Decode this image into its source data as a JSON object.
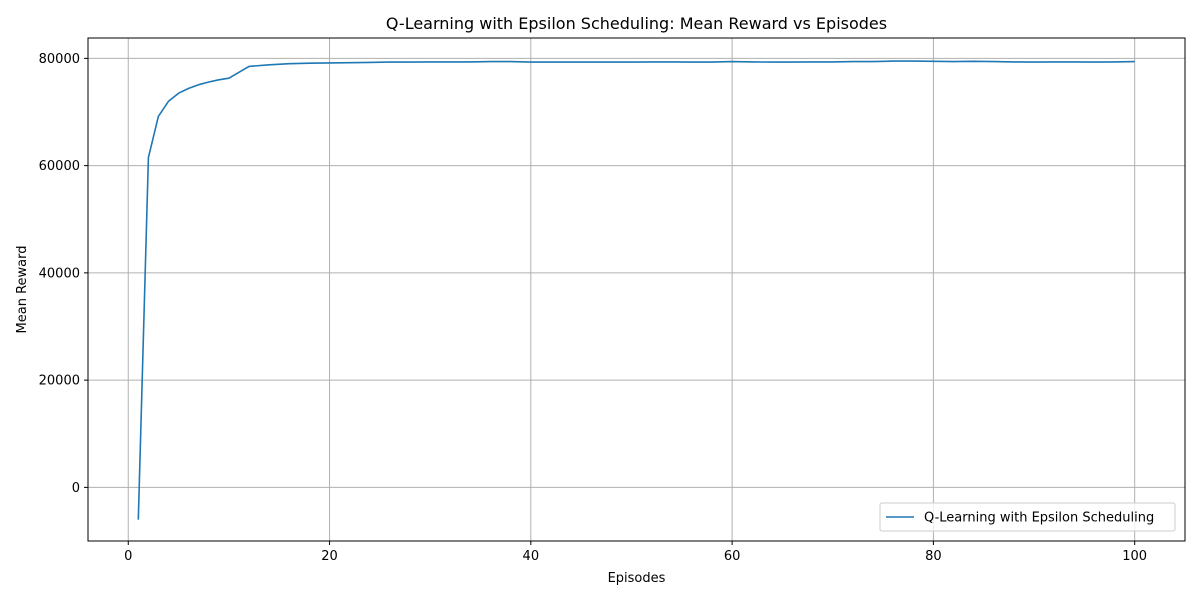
{
  "chart_data": {
    "type": "line",
    "title": "Q-Learning with Epsilon Scheduling: Mean Reward vs Episodes",
    "xlabel": "Episodes",
    "ylabel": "Mean Reward",
    "xlim": [
      -4,
      105
    ],
    "ylim": [
      -10000,
      83800
    ],
    "xticks": [
      0,
      20,
      40,
      60,
      80,
      100
    ],
    "yticks": [
      0,
      20000,
      40000,
      60000,
      80000
    ],
    "grid": true,
    "legend": "lower-right",
    "series": [
      {
        "name": "Q-Learning with Epsilon Scheduling",
        "color": "#1f77b4",
        "x": [
          1,
          2,
          3,
          4,
          5,
          6,
          7,
          8,
          9,
          10,
          12,
          14,
          16,
          18,
          20,
          22,
          24,
          26,
          28,
          30,
          32,
          34,
          36,
          38,
          40,
          42,
          44,
          46,
          48,
          50,
          52,
          54,
          56,
          58,
          60,
          62,
          64,
          66,
          68,
          70,
          72,
          74,
          76,
          78,
          80,
          82,
          84,
          86,
          88,
          90,
          92,
          94,
          96,
          98,
          100
        ],
        "y": [
          -6000,
          61500,
          69200,
          72000,
          73500,
          74400,
          75100,
          75600,
          76000,
          76300,
          78500,
          78800,
          79000,
          79100,
          79150,
          79200,
          79250,
          79300,
          79300,
          79350,
          79350,
          79350,
          79400,
          79400,
          79300,
          79300,
          79300,
          79300,
          79300,
          79300,
          79350,
          79350,
          79300,
          79300,
          79400,
          79350,
          79300,
          79300,
          79350,
          79350,
          79400,
          79400,
          79500,
          79500,
          79450,
          79400,
          79450,
          79400,
          79350,
          79300,
          79350,
          79350,
          79300,
          79350,
          79400
        ]
      }
    ]
  }
}
